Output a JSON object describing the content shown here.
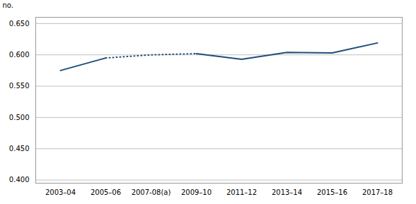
{
  "chart_data": {
    "type": "line",
    "categories": [
      "2003–04",
      "2005–06",
      "2007-08(a)",
      "2009–10",
      "2011–12",
      "2013–14",
      "2015–16",
      "2017–18"
    ],
    "series": [
      {
        "color": "#1F4E79",
        "line_style": "solid",
        "values": [
          0.575,
          0.595,
          null,
          null,
          null,
          null,
          null,
          null
        ]
      },
      {
        "color": "#1F4E79",
        "line_style": "dotted",
        "values": [
          null,
          0.595,
          0.6,
          0.602,
          null,
          null,
          null,
          null
        ]
      },
      {
        "color": "#1F4E79",
        "line_style": "solid",
        "values": [
          null,
          null,
          null,
          0.602,
          0.593,
          0.604,
          0.603,
          0.619
        ]
      }
    ],
    "ylabel": "no.",
    "ylim": [
      0.395,
      0.66
    ],
    "yticks": [
      {
        "value": 0.4,
        "label": "0.400"
      },
      {
        "value": 0.45,
        "label": "0.450"
      },
      {
        "value": 0.5,
        "label": "0.500"
      },
      {
        "value": 0.55,
        "label": "0.550"
      },
      {
        "value": 0.6,
        "label": "0.600"
      },
      {
        "value": 0.65,
        "label": "0.650"
      }
    ],
    "grid": true
  }
}
